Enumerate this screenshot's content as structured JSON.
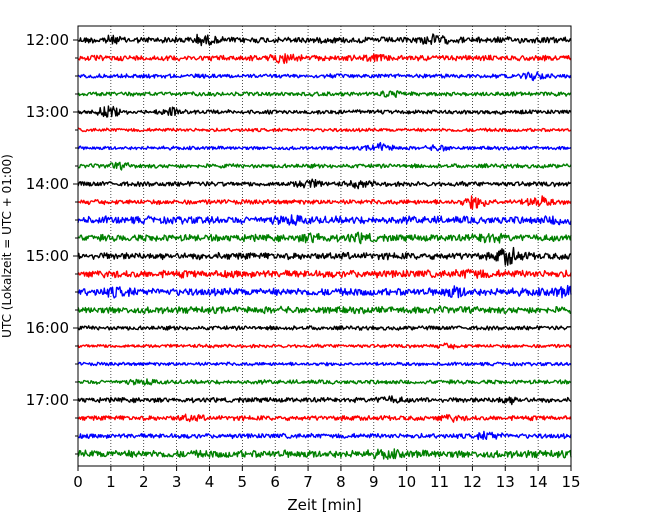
{
  "chart_data": {
    "type": "line",
    "title": "",
    "xlabel": "Zeit  [min]",
    "ylabel": "UTC (Lokalzeit = UTC + 01:00)",
    "xlim": [
      0,
      15
    ],
    "x_ticks": [
      0,
      1,
      2,
      3,
      4,
      5,
      6,
      7,
      8,
      9,
      10,
      11,
      12,
      13,
      14,
      15
    ],
    "y_ticks": [
      "12:00",
      "13:00",
      "14:00",
      "15:00",
      "16:00",
      "17:00"
    ],
    "grid": "vertical dotted",
    "trace_colors": [
      "#000000",
      "#ff0000",
      "#0000ff",
      "#008000"
    ],
    "rows": [
      {
        "time": "12:00",
        "color": "#000000",
        "amp": 0.45,
        "bursts": [
          [
            0.9,
            0.35
          ],
          [
            3.8,
            0.45
          ],
          [
            10.8,
            0.5
          ]
        ]
      },
      {
        "time": "12:15",
        "color": "#ff0000",
        "amp": 0.4,
        "bursts": [
          [
            6.3,
            0.5
          ],
          [
            9.0,
            0.25
          ]
        ]
      },
      {
        "time": "12:30",
        "color": "#0000ff",
        "amp": 0.3,
        "bursts": [
          [
            13.9,
            0.45
          ]
        ]
      },
      {
        "time": "12:45",
        "color": "#008000",
        "amp": 0.3,
        "bursts": [
          [
            9.5,
            0.35
          ]
        ]
      },
      {
        "time": "13:00",
        "color": "#000000",
        "amp": 0.3,
        "bursts": [
          [
            0.9,
            0.6
          ],
          [
            2.8,
            0.4
          ]
        ]
      },
      {
        "time": "13:15",
        "color": "#ff0000",
        "amp": 0.25,
        "bursts": []
      },
      {
        "time": "13:30",
        "color": "#0000ff",
        "amp": 0.25,
        "bursts": [
          [
            9.2,
            0.55
          ],
          [
            11.0,
            0.3
          ]
        ]
      },
      {
        "time": "13:45",
        "color": "#008000",
        "amp": 0.3,
        "bursts": [
          [
            1.3,
            0.3
          ]
        ]
      },
      {
        "time": "14:00",
        "color": "#000000",
        "amp": 0.35,
        "bursts": [
          [
            7.0,
            0.5
          ],
          [
            8.6,
            0.35
          ]
        ]
      },
      {
        "time": "14:15",
        "color": "#ff0000",
        "amp": 0.35,
        "bursts": [
          [
            12.1,
            0.75
          ],
          [
            14.0,
            0.6
          ]
        ]
      },
      {
        "time": "14:30",
        "color": "#0000ff",
        "amp": 0.55,
        "bursts": [
          [
            6.5,
            0.35
          ],
          [
            14.7,
            0.4
          ]
        ]
      },
      {
        "time": "14:45",
        "color": "#008000",
        "amp": 0.5,
        "bursts": [
          [
            7.2,
            0.45
          ],
          [
            8.6,
            0.4
          ],
          [
            12.5,
            0.45
          ]
        ]
      },
      {
        "time": "15:00",
        "color": "#000000",
        "amp": 0.5,
        "bursts": [
          [
            13.1,
            0.95
          ]
        ]
      },
      {
        "time": "15:15",
        "color": "#ff0000",
        "amp": 0.55,
        "bursts": [
          [
            12.0,
            0.35
          ]
        ]
      },
      {
        "time": "15:30",
        "color": "#0000ff",
        "amp": 0.55,
        "bursts": [
          [
            1.2,
            0.4
          ],
          [
            11.5,
            0.5
          ],
          [
            14.8,
            0.4
          ]
        ]
      },
      {
        "time": "15:45",
        "color": "#008000",
        "amp": 0.5,
        "bursts": []
      },
      {
        "time": "16:00",
        "color": "#000000",
        "amp": 0.3,
        "bursts": []
      },
      {
        "time": "16:15",
        "color": "#ff0000",
        "amp": 0.25,
        "bursts": [
          [
            11.3,
            0.2
          ]
        ]
      },
      {
        "time": "16:30",
        "color": "#0000ff",
        "amp": 0.25,
        "bursts": []
      },
      {
        "time": "16:45",
        "color": "#008000",
        "amp": 0.3,
        "bursts": [
          [
            2.0,
            0.25
          ]
        ]
      },
      {
        "time": "17:00",
        "color": "#000000",
        "amp": 0.35,
        "bursts": [
          [
            9.5,
            0.3
          ],
          [
            13.1,
            0.35
          ]
        ]
      },
      {
        "time": "17:15",
        "color": "#ff0000",
        "amp": 0.35,
        "bursts": [
          [
            3.4,
            0.3
          ],
          [
            11.3,
            0.3
          ]
        ]
      },
      {
        "time": "17:30",
        "color": "#0000ff",
        "amp": 0.35,
        "bursts": [
          [
            12.5,
            0.45
          ]
        ]
      },
      {
        "time": "17:45",
        "color": "#008000",
        "amp": 0.55,
        "bursts": [
          [
            9.4,
            0.3
          ]
        ]
      }
    ]
  }
}
